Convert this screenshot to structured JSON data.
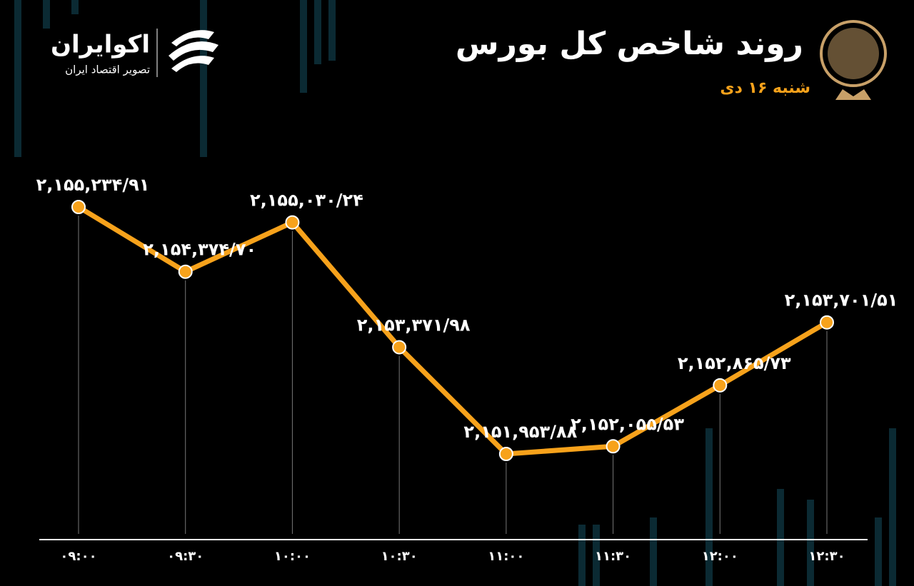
{
  "brand": {
    "name": "اکوایران",
    "tagline": "تصویر اقتصاد ایران"
  },
  "chart_data": {
    "type": "line",
    "title": "روند شاخص کل بورس",
    "subtitle": "شنبه ۱۶ دی",
    "categories": [
      "۰۹:۰۰",
      "۰۹:۳۰",
      "۱۰:۰۰",
      "۱۰:۳۰",
      "۱۱:۰۰",
      "۱۱:۳۰",
      "۱۲:۰۰",
      "۱۲:۳۰"
    ],
    "values": [
      2155234.91,
      2154374.7,
      2155030.24,
      2153371.98,
      2151953.88,
      2152055.53,
      2152865.73,
      2153701.51
    ],
    "value_labels": [
      "۲,۱۵۵,۲۳۴/۹۱",
      "۲,۱۵۴,۳۷۴/۷۰",
      "۲,۱۵۵,۰۳۰/۲۴",
      "۲,۱۵۳,۳۷۱/۹۸",
      "۲,۱۵۱,۹۵۳/۸۸",
      "۲,۱۵۲,۰۵۵/۵۳",
      "۲,۱۵۲,۸۶۵/۷۳",
      "۲,۱۵۳,۷۰۱/۵۱"
    ],
    "color": "#f7a21b"
  }
}
